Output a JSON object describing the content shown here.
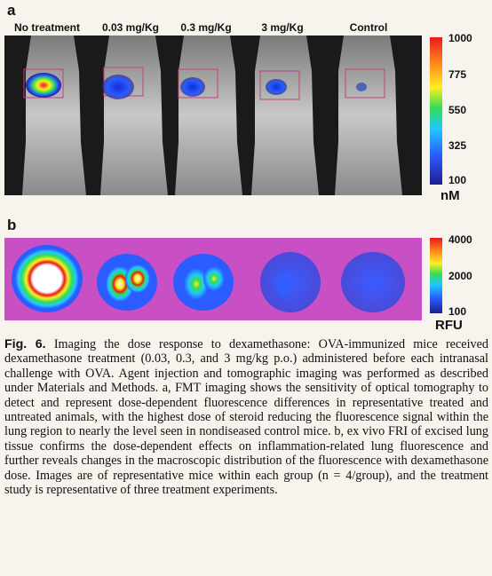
{
  "panel_a": {
    "letter": "a",
    "groups": [
      "No treatment",
      "0.03 mg/Kg",
      "0.3 mg/Kg",
      "3 mg/Kg",
      "Control"
    ],
    "colorbar": {
      "ticks": [
        "1000",
        "775",
        "550",
        "325",
        "100"
      ],
      "unit": "nM"
    }
  },
  "panel_b": {
    "letter": "b",
    "colorbar": {
      "ticks": [
        "4000",
        "2000",
        "100"
      ],
      "unit": "RFU"
    }
  },
  "caption": {
    "fig_label": "Fig. 6.",
    "text": "Imaging the dose response to dexamethasone: OVA-immunized mice received dexamethasone treatment (0.03, 0.3, and 3 mg/kg p.o.) administered before each intranasal challenge with OVA. Agent injection and tomographic imaging was performed as described under Materials and Methods. a, FMT imaging shows the sensitivity of optical tomography to detect and represent dose-dependent fluorescence differences in representative treated and untreated animals, with the highest dose of steroid reducing the fluorescence signal within the lung region to nearly the level seen in nondiseased control mice. b, ex vivo FRI of excised lung tissue confirms the dose-dependent effects on inflammation-related lung fluorescence and further reveals changes in the macroscopic distribution of the fluorescence with dexamethasone dose. Images are of representative mice within each group (n = 4/group), and the treatment study is representative of three treatment experiments."
  },
  "colors": {
    "fmt_background": "#1a1a1a",
    "fri_background": "#c84fc4",
    "colormap": [
      "#1e1e8c",
      "#2a5cff",
      "#22c8ff",
      "#33dd55",
      "#ffee22",
      "#ff8a1a",
      "#e81a1a"
    ]
  }
}
